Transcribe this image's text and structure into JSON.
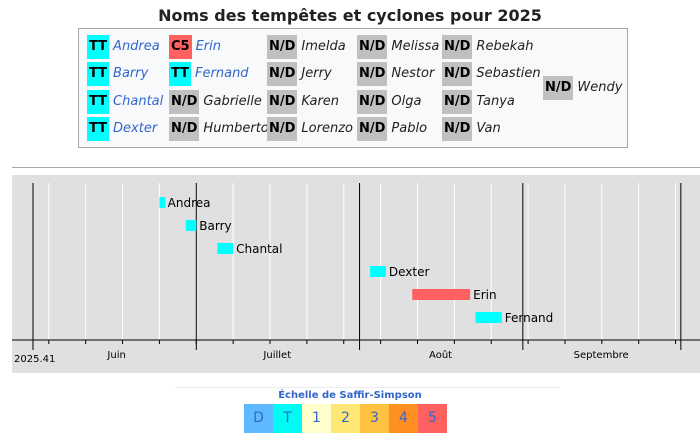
{
  "title": "Noms des tempêtes et cyclones pour 2025",
  "colors": {
    "TT": "#00ffff",
    "C5": "#ff6060",
    "N/D": "#c0c0c0",
    "link": "#3366cc"
  },
  "names": [
    {
      "badge": "TT",
      "name": "Andrea",
      "used": true
    },
    {
      "badge": "TT",
      "name": "Barry",
      "used": true
    },
    {
      "badge": "TT",
      "name": "Chantal",
      "used": true
    },
    {
      "badge": "TT",
      "name": "Dexter",
      "used": true
    },
    {
      "badge": "C5",
      "name": "Erin",
      "used": true
    },
    {
      "badge": "TT",
      "name": "Fernand",
      "used": true
    },
    {
      "badge": "N/D",
      "name": "Gabrielle",
      "used": false
    },
    {
      "badge": "N/D",
      "name": "Humberto",
      "used": false
    },
    {
      "badge": "N/D",
      "name": "Imelda",
      "used": false
    },
    {
      "badge": "N/D",
      "name": "Jerry",
      "used": false
    },
    {
      "badge": "N/D",
      "name": "Karen",
      "used": false
    },
    {
      "badge": "N/D",
      "name": "Lorenzo",
      "used": false
    },
    {
      "badge": "N/D",
      "name": "Melissa",
      "used": false
    },
    {
      "badge": "N/D",
      "name": "Nestor",
      "used": false
    },
    {
      "badge": "N/D",
      "name": "Olga",
      "used": false
    },
    {
      "badge": "N/D",
      "name": "Pablo",
      "used": false
    },
    {
      "badge": "N/D",
      "name": "Rebekah",
      "used": false
    },
    {
      "badge": "N/D",
      "name": "Sebastien",
      "used": false
    },
    {
      "badge": "N/D",
      "name": "Tanya",
      "used": false
    },
    {
      "badge": "N/D",
      "name": "Van",
      "used": false
    },
    {
      "badge": "N/D",
      "name": "Wendy",
      "used": false
    }
  ],
  "timeline": {
    "start_label": "2025.41",
    "months": [
      {
        "label": "Juin",
        "start": "2025-06-01",
        "end": "2025-06-30"
      },
      {
        "label": "Juillet",
        "start": "2025-07-01",
        "end": "2025-07-31"
      },
      {
        "label": "Août",
        "start": "2025-08-01",
        "end": "2025-08-31"
      },
      {
        "label": "Septembre",
        "start": "2025-09-01",
        "end": "2025-09-30"
      }
    ],
    "storms": [
      {
        "name": "Andrea",
        "start": "2025-06-24",
        "end": "2025-06-25",
        "category": "TT"
      },
      {
        "name": "Barry",
        "start": "2025-06-29",
        "end": "2025-07-01",
        "category": "TT"
      },
      {
        "name": "Chantal",
        "start": "2025-07-05",
        "end": "2025-07-08",
        "category": "TT"
      },
      {
        "name": "Dexter",
        "start": "2025-08-03",
        "end": "2025-08-06",
        "category": "TT"
      },
      {
        "name": "Erin",
        "start": "2025-08-11",
        "end": "2025-08-22",
        "category": "C5"
      },
      {
        "name": "Fernand",
        "start": "2025-08-23",
        "end": "2025-08-28",
        "category": "TT"
      }
    ]
  },
  "scale": {
    "title": "Échelle de Saffir-Simpson",
    "cells": [
      {
        "label": "D",
        "color": "#5ebaff"
      },
      {
        "label": "T",
        "color": "#00faf4"
      },
      {
        "label": "1",
        "color": "#ffffcc"
      },
      {
        "label": "2",
        "color": "#ffe775"
      },
      {
        "label": "3",
        "color": "#ffc140"
      },
      {
        "label": "4",
        "color": "#ff8f20"
      },
      {
        "label": "5",
        "color": "#ff6060"
      }
    ]
  }
}
